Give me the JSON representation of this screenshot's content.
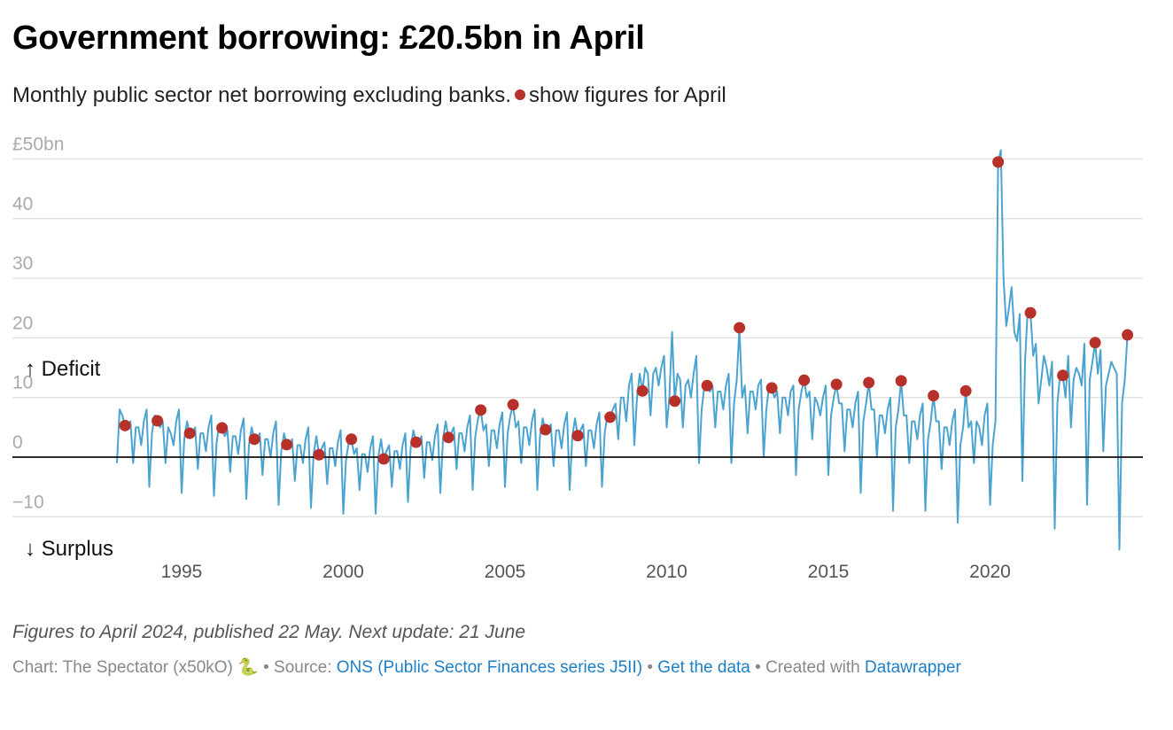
{
  "header": {
    "title": "Government borrowing: £20.5bn in April",
    "subtitle_before": "Monthly public sector net borrowing excluding banks.",
    "subtitle_after": "show figures for April"
  },
  "footer": {
    "notes": "Figures to April 2024, published 22 May. Next update: 21 June",
    "chart_credit": "Chart: The Spectator (x50kO) 🐍",
    "sep1": " • Source: ",
    "source_link": "ONS (Public Sector Finances series J5II)",
    "sep2": " • ",
    "data_link": "Get the data",
    "sep3": " • Created with ",
    "tool_link": "Datawrapper"
  },
  "colors": {
    "line": "#4ba3cf",
    "dot": "#b8302a",
    "grid": "#e3e3e3",
    "zero": "#111111"
  },
  "chart_data": {
    "type": "line",
    "title": "Government borrowing: £20.5bn in April",
    "ylabel": "£bn",
    "ylim": [
      -15.5,
      52
    ],
    "yticks": [
      -10,
      0,
      10,
      20,
      30,
      40,
      50
    ],
    "ytick_labels": [
      "−10",
      "0",
      "10",
      "20",
      "30",
      "40",
      "£50bn"
    ],
    "xticks": [
      1995,
      2000,
      2005,
      2010,
      2015,
      2020
    ],
    "xtick_labels": [
      "1995",
      "2000",
      "2005",
      "2010",
      "2015",
      "2020"
    ],
    "annotations": {
      "deficit": "↑ Deficit",
      "surplus": "↓ Surplus"
    },
    "start_year": 1993,
    "grid": true,
    "series": [
      {
        "name": "Monthly PSNB ex banks",
        "monthly_by_year": {
          "1993": [
            -1,
            8,
            7,
            5.3,
            5,
            6,
            -1,
            5,
            5,
            2,
            6,
            8
          ],
          "1994": [
            -5,
            4,
            7,
            6.1,
            5,
            6,
            -1,
            5,
            4,
            2,
            6,
            8
          ],
          "1995": [
            -6,
            3,
            6,
            4.0,
            4,
            5,
            -2,
            4,
            4,
            1,
            5,
            7
          ],
          "1996": [
            -6.5,
            2.5,
            5.5,
            4.9,
            3.5,
            4.5,
            -2.5,
            3.5,
            3.5,
            0.5,
            4.5,
            6.5
          ],
          "1997": [
            -7,
            2,
            5,
            3.0,
            3,
            4,
            -3,
            3,
            3,
            0,
            4,
            6
          ],
          "1998": [
            -8,
            1,
            4,
            2.1,
            2,
            3,
            -4,
            2,
            2,
            -1,
            3,
            5
          ],
          "1999": [
            -8.5,
            0.5,
            3.5,
            0.4,
            1.5,
            2.5,
            -4.5,
            1.5,
            1.5,
            -1.5,
            2.5,
            4.5
          ],
          "2000": [
            -9.5,
            -0.5,
            2.5,
            3.0,
            0.5,
            1.5,
            -5.5,
            0.5,
            0.5,
            -2.5,
            1.5,
            3.5
          ],
          "2001": [
            -9.5,
            0,
            3,
            -0.3,
            1,
            2,
            -5,
            1,
            1,
            -2,
            2,
            4
          ],
          "2002": [
            -7.5,
            1.5,
            4.5,
            2.5,
            2.5,
            3.5,
            -3.5,
            2.5,
            2.5,
            -0.5,
            3.5,
            5.5
          ],
          "2003": [
            -6,
            3,
            6,
            3.3,
            4,
            5,
            -2,
            4,
            4,
            1,
            5,
            7
          ],
          "2004": [
            -5.5,
            3.5,
            6.5,
            7.9,
            4.5,
            5.5,
            -1.5,
            4.5,
            4.5,
            1.5,
            5.5,
            7.5
          ],
          "2005": [
            -5,
            4,
            7,
            8.8,
            5,
            6,
            -1,
            5,
            5,
            2,
            6,
            8
          ],
          "2006": [
            -5.5,
            3.5,
            6.5,
            4.6,
            4.5,
            5.5,
            -1.5,
            4.5,
            4.5,
            1.5,
            5.5,
            7.5
          ],
          "2007": [
            -5.5,
            3.5,
            6.5,
            3.6,
            4.5,
            5.5,
            -1.5,
            4.5,
            4.5,
            1.5,
            5.5,
            7.5
          ],
          "2008": [
            -5,
            4,
            7,
            6.7,
            8,
            9,
            3,
            10,
            10,
            6,
            12,
            14
          ],
          "2009": [
            2,
            10,
            14,
            11.1,
            15,
            14,
            7,
            14,
            15,
            12,
            15,
            17
          ],
          "2010": [
            5,
            10,
            21,
            9.4,
            14,
            13,
            5,
            12,
            13,
            10,
            14,
            17
          ],
          "2011": [
            -1,
            8,
            12,
            12.0,
            11,
            12,
            5,
            11,
            11,
            8,
            12,
            14
          ],
          "2012": [
            -1,
            9,
            13,
            21.7,
            10,
            12,
            4,
            11,
            11,
            8,
            12,
            13
          ],
          "2013": [
            0,
            8,
            12,
            11.6,
            10,
            11,
            4,
            10,
            10,
            7,
            11,
            12
          ],
          "2014": [
            -3,
            8,
            11,
            12.9,
            10,
            11,
            3,
            10,
            9,
            7,
            10,
            12
          ],
          "2015": [
            -3,
            7,
            10,
            12.2,
            9,
            9,
            1,
            8,
            8,
            5,
            9,
            11
          ],
          "2016": [
            -6,
            6,
            9,
            12.5,
            8,
            8,
            0,
            7,
            7,
            4,
            8,
            10
          ],
          "2017": [
            -9,
            5,
            8,
            12.8,
            7,
            7,
            -1,
            6,
            6,
            3,
            7,
            9
          ],
          "2018": [
            -9,
            3,
            6,
            10.3,
            6,
            6,
            -2,
            5,
            5,
            2,
            6,
            8
          ],
          "2019": [
            -11,
            2,
            5,
            11.1,
            5,
            6,
            -1,
            6,
            5,
            2,
            7,
            9
          ],
          "2020": [
            -8,
            2,
            6,
            49.5,
            51.5,
            30,
            22,
            25,
            28.5,
            21,
            19.5,
            24
          ],
          "2021": [
            -4,
            16,
            25,
            24.2,
            17,
            19,
            9,
            13,
            17,
            15,
            12,
            16
          ],
          "2022": [
            -12,
            9,
            14,
            13.7,
            10,
            17,
            5,
            13,
            15,
            14,
            12,
            19
          ],
          "2023": [
            -8,
            13,
            16,
            19.2,
            14,
            18,
            1,
            12,
            14,
            16,
            15,
            14
          ],
          "2024": [
            -15.5,
            9,
            13,
            20.5
          ]
        }
      }
    ],
    "highlight": {
      "label": "April figures",
      "month": 4
    }
  }
}
